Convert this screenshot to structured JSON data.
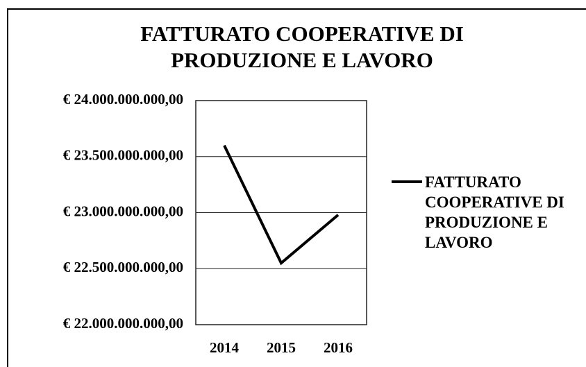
{
  "chart_data": {
    "type": "line",
    "title": "FATTURATO COOPERATIVE DI PRODUZIONE E LAVORO",
    "categories": [
      "2014",
      "2015",
      "2016"
    ],
    "series": [
      {
        "name": "FATTURATO COOPERATIVE DI PRODUZIONE E LAVORO",
        "color": "#000000",
        "values": [
          23600000000,
          22550000000,
          22980000000
        ]
      }
    ],
    "ylim": [
      22000000000,
      24000000000
    ],
    "yticks": [
      {
        "value": 22000000000,
        "label": "€ 22.000.000.000,00"
      },
      {
        "value": 22500000000,
        "label": "€ 22.500.000.000,00"
      },
      {
        "value": 23000000000,
        "label": "€ 23.000.000.000,00"
      },
      {
        "value": 23500000000,
        "label": "€ 23.500.000.000,00"
      },
      {
        "value": 24000000000,
        "label": "€ 24.000.000.000,00"
      }
    ],
    "grid": true,
    "legend": "right"
  }
}
